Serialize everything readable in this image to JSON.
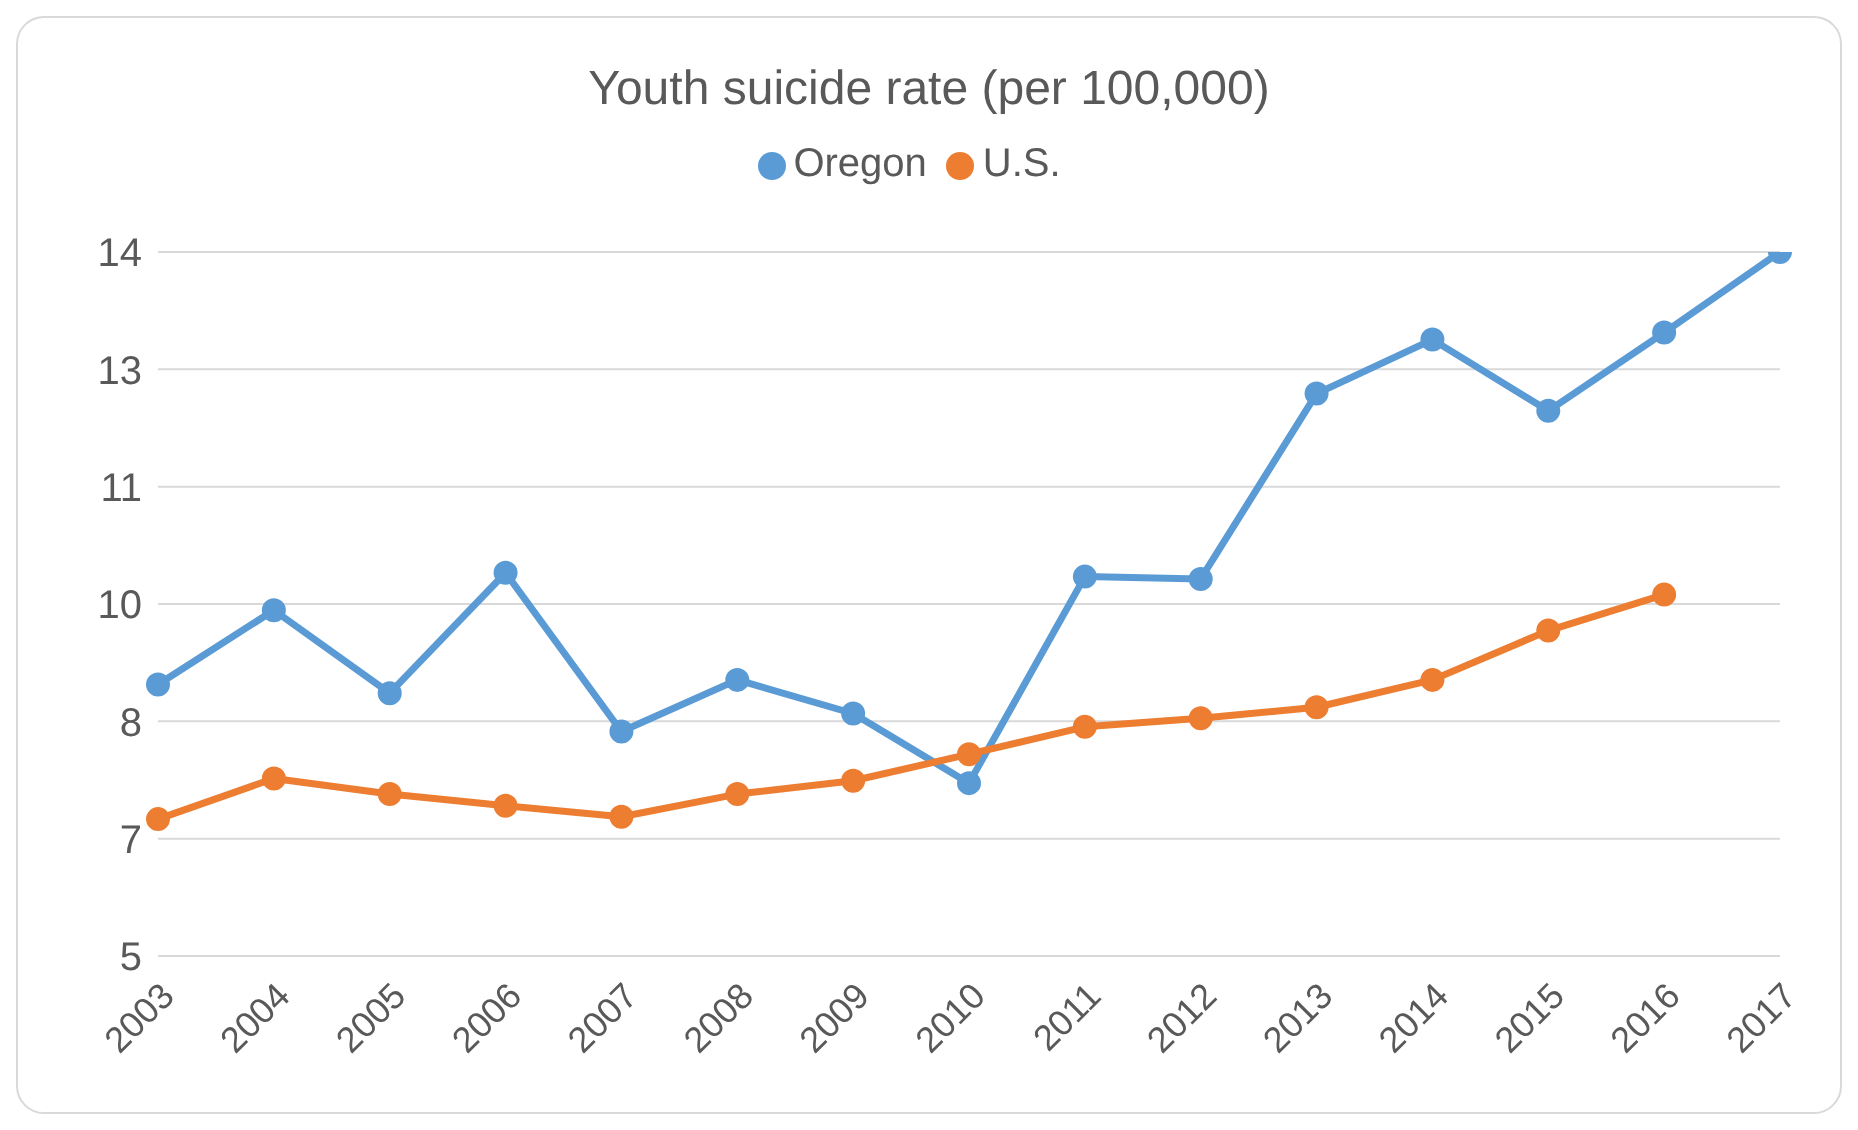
{
  "chart_data": {
    "type": "line",
    "title": "Youth suicide rate (per 100,000)",
    "categories": [
      "2003",
      "2004",
      "2005",
      "2006",
      "2007",
      "2008",
      "2009",
      "2010",
      "2011",
      "2012",
      "2013",
      "2014",
      "2015",
      "2016",
      "2017"
    ],
    "series": [
      {
        "name": "Oregon",
        "color": "#5b9bd5",
        "values": [
          8.47,
          9.42,
          8.36,
          9.9,
          7.87,
          8.53,
          8.1,
          7.21,
          9.85,
          9.82,
          12.19,
          12.88,
          11.97,
          12.97,
          14.0
        ]
      },
      {
        "name": "U.S.",
        "color": "#ed7d31",
        "values": [
          6.75,
          7.27,
          7.07,
          6.92,
          6.78,
          7.07,
          7.24,
          7.58,
          7.93,
          8.04,
          8.18,
          8.53,
          9.16,
          9.62,
          null
        ]
      }
    ],
    "ylim": [
      5,
      14
    ],
    "yticks": [
      5,
      {
        "value": 6.5,
        "label": "7"
      },
      8,
      {
        "value": 9.5,
        "label": "10"
      },
      11,
      {
        "value": 12.5,
        "label": "13"
      },
      14
    ],
    "grid": "y",
    "legend": "top",
    "marker": "circle",
    "line_style": "solid"
  }
}
